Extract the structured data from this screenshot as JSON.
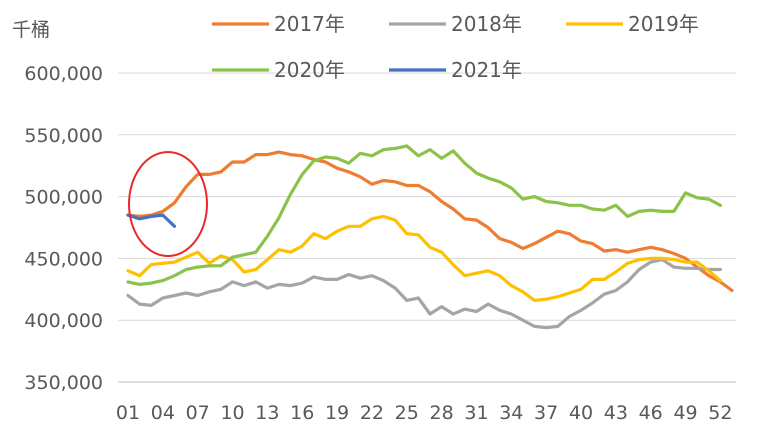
{
  "chart_data": {
    "type": "line",
    "unit_label": "千桶",
    "ylim": [
      350000,
      600000
    ],
    "y_ticks": [
      "350,000",
      "400,000",
      "450,000",
      "500,000",
      "550,000",
      "600,000"
    ],
    "y_tick_values": [
      350000,
      400000,
      450000,
      500000,
      550000,
      600000
    ],
    "x_ticks": [
      "01",
      "04",
      "07",
      "10",
      "13",
      "16",
      "19",
      "22",
      "25",
      "28",
      "31",
      "34",
      "37",
      "40",
      "43",
      "46",
      "49",
      "52"
    ],
    "grid": "horizontal",
    "legend_position": "top",
    "annotation": "red ellipse around weeks 01–05",
    "series": [
      {
        "name": "2017年",
        "color": "#ED7D31",
        "x": [
          1,
          2,
          3,
          4,
          5,
          6,
          7,
          8,
          9,
          10,
          11,
          12,
          13,
          14,
          15,
          16,
          17,
          18,
          19,
          20,
          21,
          22,
          23,
          24,
          25,
          26,
          27,
          28,
          29,
          30,
          31,
          32,
          33,
          34,
          35,
          36,
          37,
          38,
          39,
          40,
          41,
          42,
          43,
          44,
          45,
          46,
          47,
          48,
          49,
          50,
          51,
          52,
          53
        ],
        "values": [
          485000,
          484000,
          485000,
          488000,
          495000,
          508000,
          518000,
          518000,
          520000,
          528000,
          528000,
          534000,
          534000,
          536000,
          534000,
          533000,
          530000,
          528000,
          523000,
          520000,
          516000,
          510000,
          513000,
          512000,
          509000,
          509000,
          504000,
          496000,
          490000,
          482000,
          481000,
          475000,
          466000,
          463000,
          458000,
          462000,
          467000,
          472000,
          470000,
          464000,
          462000,
          456000,
          457000,
          455000,
          457000,
          459000,
          457000,
          454000,
          450000,
          443000,
          436000,
          431000,
          424000
        ]
      },
      {
        "name": "2018年",
        "color": "#A5A5A5",
        "x": [
          1,
          2,
          3,
          4,
          5,
          6,
          7,
          8,
          9,
          10,
          11,
          12,
          13,
          14,
          15,
          16,
          17,
          18,
          19,
          20,
          21,
          22,
          23,
          24,
          25,
          26,
          27,
          28,
          29,
          30,
          31,
          32,
          33,
          34,
          35,
          36,
          37,
          38,
          39,
          40,
          41,
          42,
          43,
          44,
          45,
          46,
          47,
          48,
          49,
          50,
          51,
          52
        ],
        "values": [
          420000,
          413000,
          412000,
          418000,
          420000,
          422000,
          420000,
          423000,
          425000,
          431000,
          428000,
          431000,
          426000,
          429000,
          428000,
          430000,
          435000,
          433000,
          433000,
          437000,
          434000,
          436000,
          432000,
          426000,
          416000,
          418000,
          405000,
          411000,
          405000,
          409000,
          407000,
          413000,
          408000,
          405000,
          400000,
          395000,
          394000,
          395000,
          403000,
          408000,
          414000,
          421000,
          424000,
          431000,
          441000,
          447000,
          449000,
          443000,
          442000,
          442000,
          441000,
          441000
        ]
      },
      {
        "name": "2019年",
        "color": "#FFC000",
        "x": [
          1,
          2,
          3,
          4,
          5,
          6,
          7,
          8,
          9,
          10,
          11,
          12,
          13,
          14,
          15,
          16,
          17,
          18,
          19,
          20,
          21,
          22,
          23,
          24,
          25,
          26,
          27,
          28,
          29,
          30,
          31,
          32,
          33,
          34,
          35,
          36,
          37,
          38,
          39,
          40,
          41,
          42,
          43,
          44,
          45,
          46,
          47,
          48,
          49,
          50,
          51,
          52
        ],
        "values": [
          440000,
          436000,
          445000,
          446000,
          447000,
          451000,
          455000,
          446000,
          452000,
          449000,
          439000,
          441000,
          449000,
          457000,
          455000,
          460000,
          470000,
          466000,
          472000,
          476000,
          476000,
          482000,
          484000,
          481000,
          470000,
          469000,
          459000,
          455000,
          445000,
          436000,
          438000,
          440000,
          436000,
          428000,
          423000,
          416000,
          417000,
          419000,
          422000,
          425000,
          433000,
          433000,
          439000,
          446000,
          449000,
          450000,
          450000,
          449000,
          447000,
          447000,
          440000,
          432000
        ]
      },
      {
        "name": "2020年",
        "color": "#8BC34A",
        "x": [
          1,
          2,
          3,
          4,
          5,
          6,
          7,
          8,
          9,
          10,
          11,
          12,
          13,
          14,
          15,
          16,
          17,
          18,
          19,
          20,
          21,
          22,
          23,
          24,
          25,
          26,
          27,
          28,
          29,
          30,
          31,
          32,
          33,
          34,
          35,
          36,
          37,
          38,
          39,
          40,
          41,
          42,
          43,
          44,
          45,
          46,
          47,
          48,
          49,
          50,
          51,
          52
        ],
        "values": [
          431000,
          429000,
          430000,
          432000,
          436000,
          441000,
          443000,
          444000,
          444000,
          451000,
          453000,
          455000,
          468000,
          483000,
          502000,
          518000,
          529000,
          532000,
          531000,
          527000,
          535000,
          533000,
          538000,
          539000,
          541000,
          533000,
          538000,
          531000,
          537000,
          527000,
          519000,
          515000,
          512000,
          507000,
          498000,
          500000,
          496000,
          495000,
          493000,
          493000,
          490000,
          489000,
          493000,
          484000,
          488000,
          489000,
          488000,
          488000,
          503000,
          499000,
          498000,
          493000
        ]
      },
      {
        "name": "2021年",
        "color": "#4472C4",
        "x": [
          1,
          2,
          3,
          4,
          5
        ],
        "values": [
          485000,
          482000,
          484000,
          485000,
          476000
        ]
      }
    ]
  }
}
